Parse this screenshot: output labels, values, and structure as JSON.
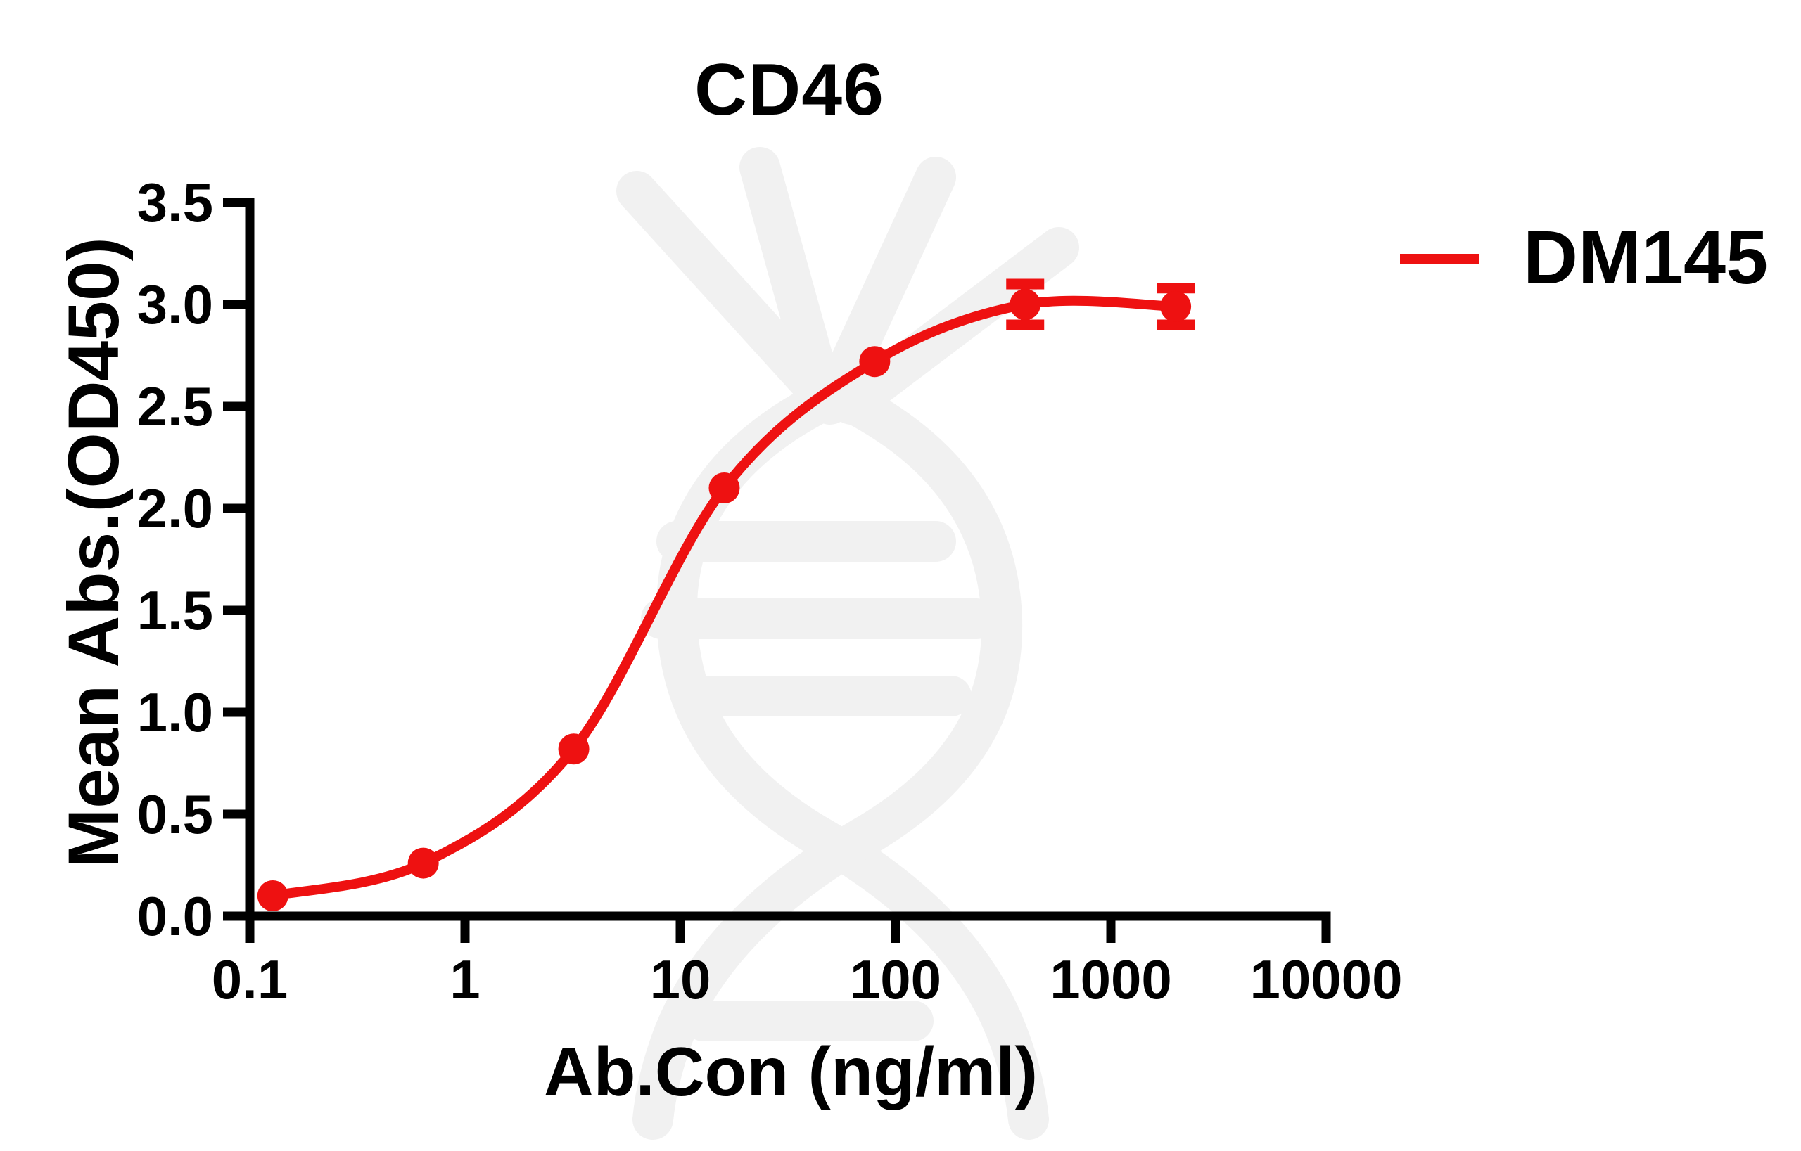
{
  "title": "CD46",
  "legend": {
    "label": "DM145",
    "color": "#EE1111"
  },
  "axes": {
    "x_label": "Ab.Con (ng/ml)",
    "y_label": "Mean Abs.(OD450)"
  },
  "watermark": {
    "description": "faint gray DNA double-helix logo",
    "color": "#F1F1F1"
  },
  "chart_data": {
    "type": "line",
    "title": "CD46",
    "xlabel": "Ab.Con (ng/ml)",
    "ylabel": "Mean Abs.(OD450)",
    "x_scale": "log10",
    "xlim": [
      0.1,
      10000
    ],
    "ylim": [
      0.0,
      3.5
    ],
    "x_ticks": [
      0.1,
      1,
      10,
      100,
      1000,
      10000
    ],
    "x_tick_labels": [
      "0.1",
      "1",
      "10",
      "100",
      "1000",
      "10000"
    ],
    "y_ticks": [
      0.0,
      0.5,
      1.0,
      1.5,
      2.0,
      2.5,
      3.0,
      3.5
    ],
    "y_tick_labels": [
      "0.0",
      "0.5",
      "1.0",
      "1.5",
      "2.0",
      "2.5",
      "3.0",
      "3.5"
    ],
    "grid": false,
    "legend_position": "right-of-plot-top",
    "series": [
      {
        "name": "DM145",
        "color": "#EE1111",
        "marker": "circle",
        "x": [
          0.128,
          0.64,
          3.2,
          16,
          80,
          400,
          2000
        ],
        "y": [
          0.1,
          0.26,
          0.82,
          2.1,
          2.72,
          3.0,
          2.99
        ],
        "y_err": [
          0,
          0,
          0,
          0,
          0,
          0.1,
          0.09
        ]
      }
    ]
  }
}
